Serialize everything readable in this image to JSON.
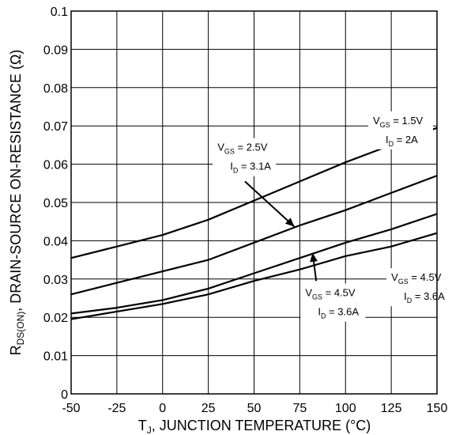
{
  "chart_data": {
    "type": "line",
    "title": "",
    "xlabel": "T_J, JUNCTION TEMPERATURE (°C)",
    "xlabel_parts": {
      "main": "T",
      "sub": "J",
      "rest": ", JUNCTION TEMPERATURE (°C)"
    },
    "ylabel": "R_DS(ON), DRAIN-SOURCE ON-RESISTANCE (Ω)",
    "ylabel_parts": {
      "main": "R",
      "sub": "DS(ON)",
      "rest": ", DRAIN-SOURCE ON-RESISTANCE (Ω)"
    },
    "xlim": [
      -50,
      150
    ],
    "ylim": [
      0,
      0.1
    ],
    "grid": true,
    "x_ticks": [
      "-50",
      "-25",
      "0",
      "25",
      "50",
      "75",
      "100",
      "125",
      "150"
    ],
    "y_ticks": [
      "0",
      "0.01",
      "0.02",
      "0.03",
      "0.04",
      "0.05",
      "0.06",
      "0.07",
      "0.08",
      "0.09",
      "0.1"
    ],
    "series": [
      {
        "label_lines": [
          "V_GS = 1.5V",
          "I_D = 2A"
        ],
        "x": [
          -50,
          -25,
          0,
          25,
          50,
          75,
          100,
          125,
          150
        ],
        "y": [
          0.0355,
          0.0385,
          0.0415,
          0.0455,
          0.0505,
          0.0555,
          0.0605,
          0.065,
          0.0695
        ]
      },
      {
        "label_lines": [
          "V_GS = 2.5V",
          "I_D = 3.1A"
        ],
        "x": [
          -50,
          -25,
          0,
          25,
          50,
          75,
          100,
          125,
          150
        ],
        "y": [
          0.026,
          0.029,
          0.032,
          0.035,
          0.0395,
          0.044,
          0.048,
          0.0525,
          0.057
        ]
      },
      {
        "label_lines": [
          "V_GS = 4.5V",
          "I_D = 3.6A"
        ],
        "x": [
          -50,
          -25,
          0,
          25,
          50,
          75,
          100,
          125,
          150
        ],
        "y": [
          0.021,
          0.0225,
          0.0245,
          0.0275,
          0.0315,
          0.0355,
          0.0395,
          0.043,
          0.047
        ]
      },
      {
        "label_lines": [
          "V_GS = 4.5V",
          "I_D = 3.6A"
        ],
        "x": [
          -50,
          -25,
          0,
          25,
          50,
          75,
          100,
          125,
          150
        ],
        "y": [
          0.0195,
          0.0215,
          0.0235,
          0.026,
          0.0295,
          0.0325,
          0.036,
          0.0385,
          0.042
        ]
      }
    ],
    "annotations": [
      {
        "lines": [
          {
            "main": "V",
            "sub": "GS",
            "rest": " = 1.5V"
          },
          {
            "main": "I",
            "sub": "D",
            "rest": " = 2A"
          }
        ]
      },
      {
        "lines": [
          {
            "main": "V",
            "sub": "GS",
            "rest": " = 2.5V"
          },
          {
            "main": "I",
            "sub": "D",
            "rest": " = 3.1A"
          }
        ]
      },
      {
        "lines": [
          {
            "main": "V",
            "sub": "GS",
            "rest": " = 4.5V"
          },
          {
            "main": "I",
            "sub": "D",
            "rest": " = 3.6A"
          }
        ]
      },
      {
        "lines": [
          {
            "main": "V",
            "sub": "GS",
            "rest": " = 4.5V"
          },
          {
            "main": "I",
            "sub": "D",
            "rest": " = 3.6A"
          }
        ]
      }
    ]
  }
}
